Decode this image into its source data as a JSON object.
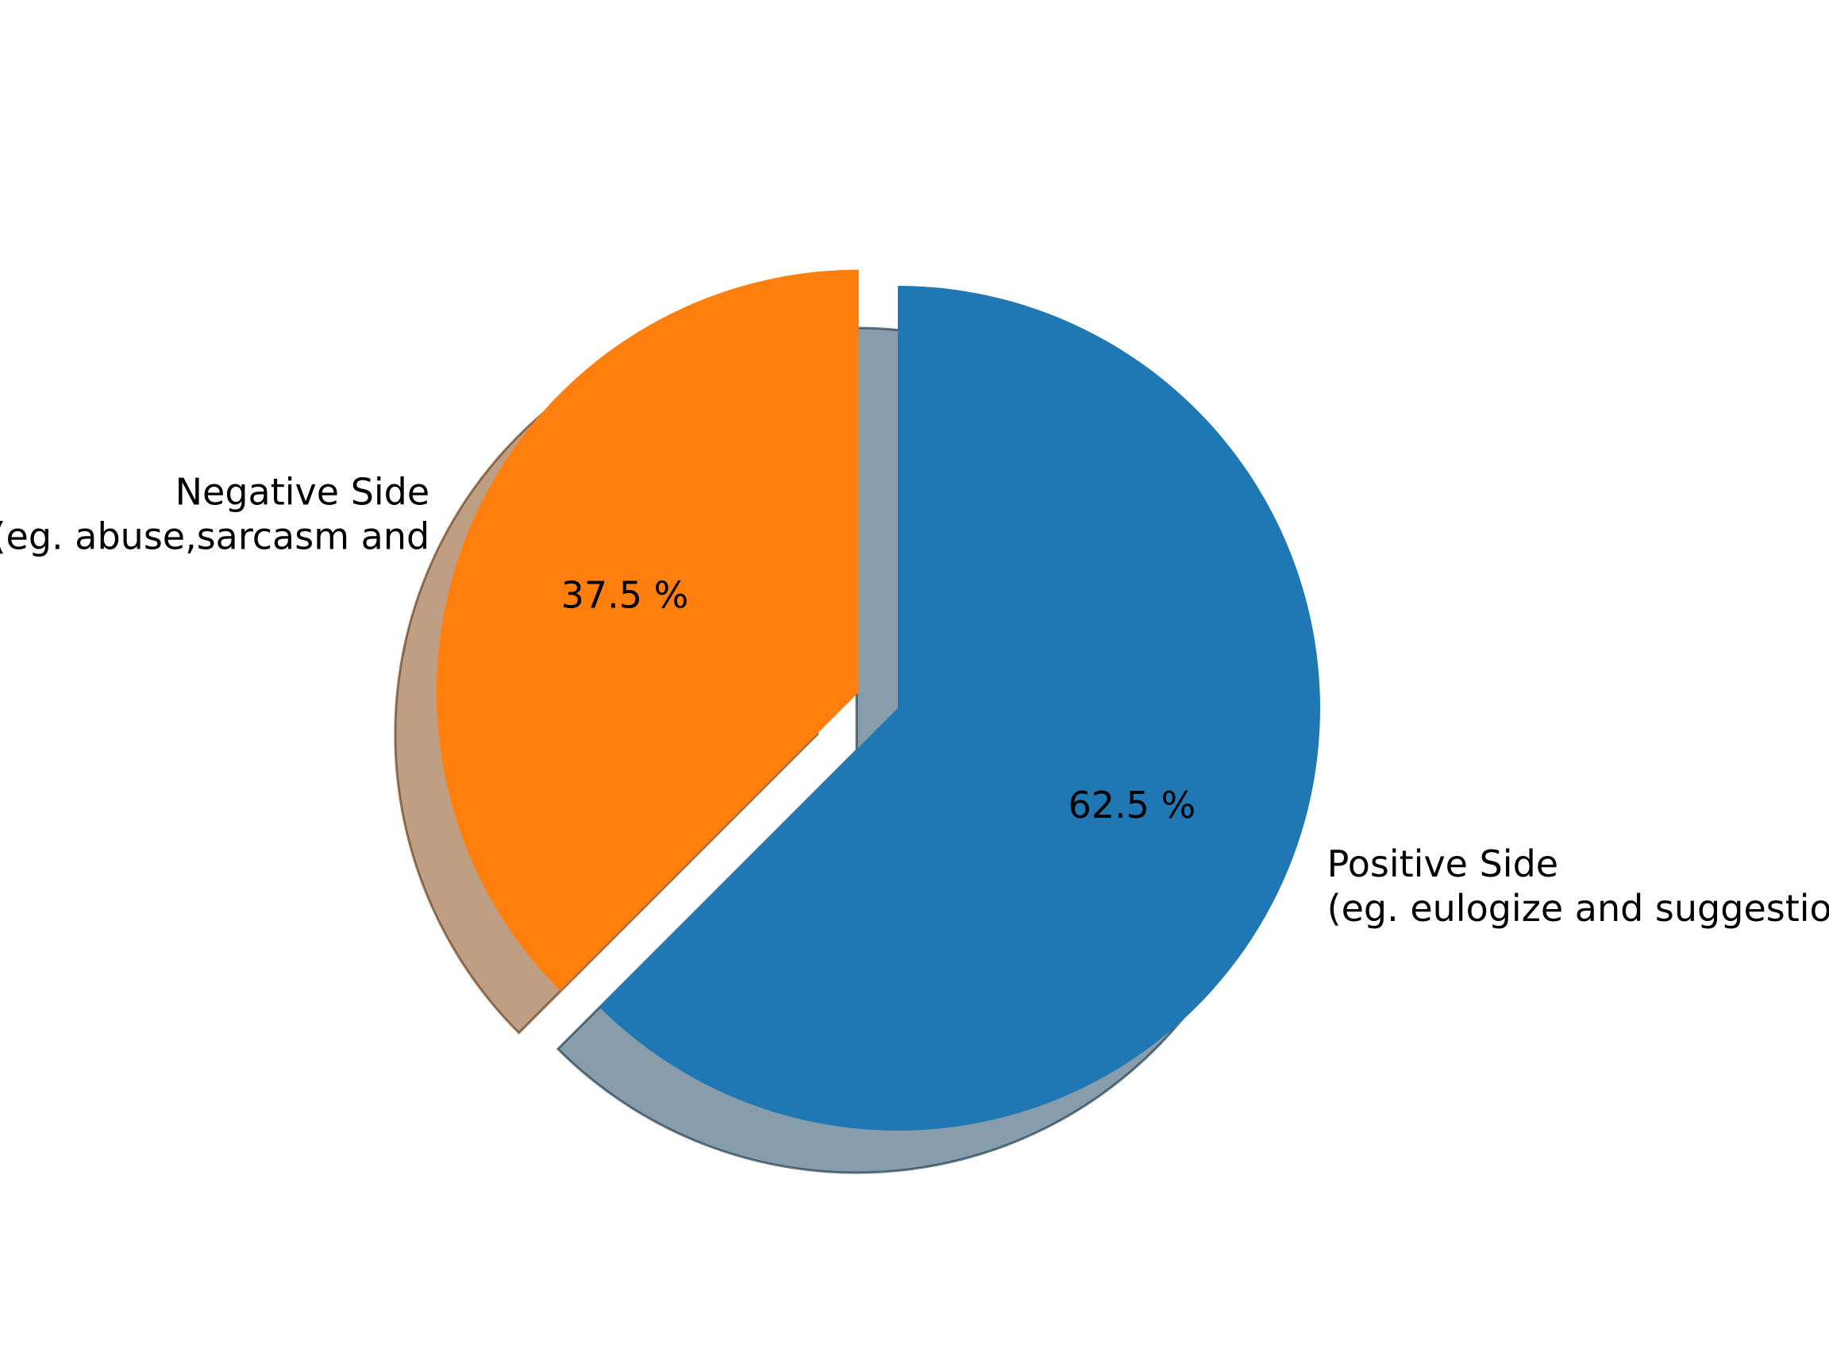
{
  "chart_data": {
    "type": "pie",
    "title": "",
    "categories": [
      "Positive Side\n(eg. eulogize and suggestion)",
      "Negative Side\n(eg. abuse,sarcasm and"
    ],
    "values": [
      62.5,
      37.5
    ],
    "value_labels": [
      "62.5 %",
      "37.5 %"
    ],
    "colors": [
      "#1f77b4",
      "#ff7f0e"
    ],
    "exploded": [
      false,
      true
    ],
    "shadow": true,
    "start_angle_deg": 90,
    "direction": "clockwise",
    "legend": false
  }
}
